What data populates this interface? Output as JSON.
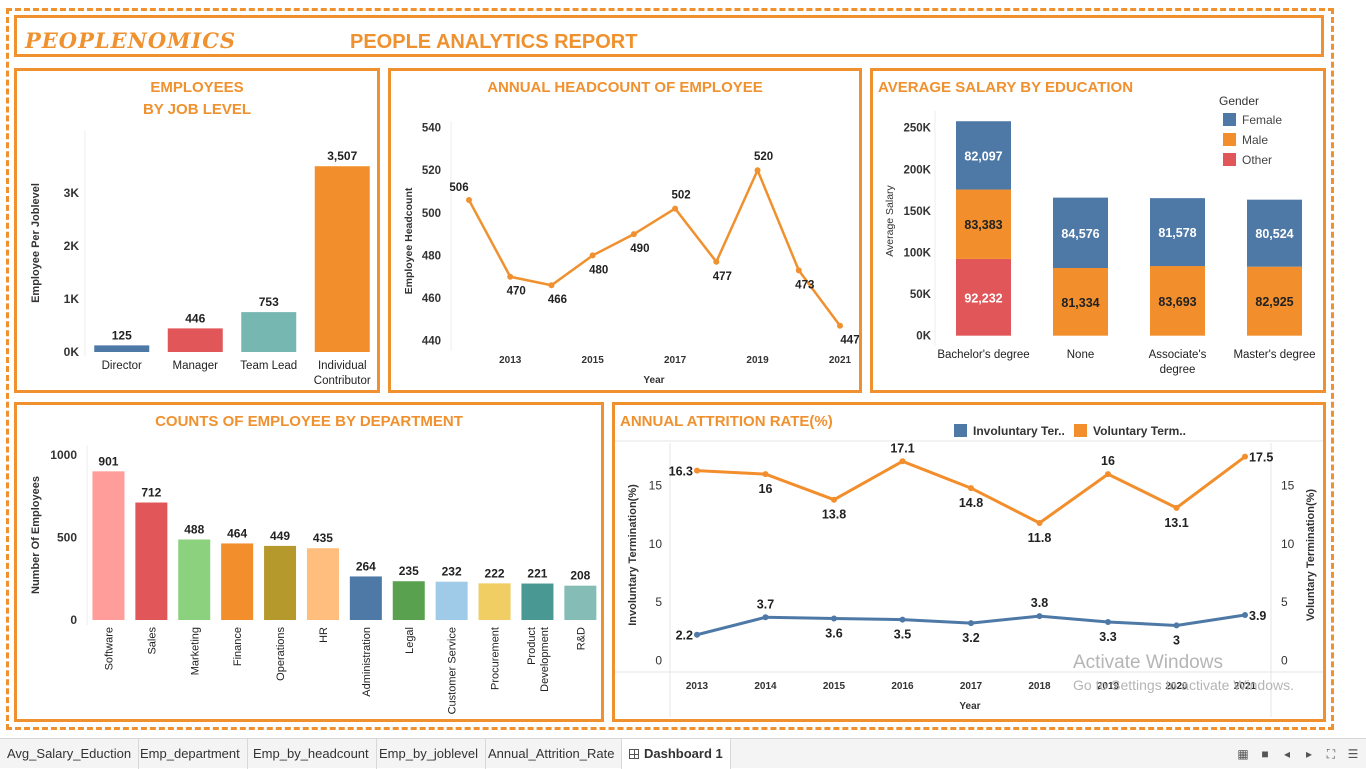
{
  "header": {
    "brand": "PEOPLENOMICS",
    "title": "PEOPLE ANALYTICS REPORT"
  },
  "panels": {
    "job_level": {
      "title_line1": "EMPLOYEES",
      "title_line2": "BY JOB LEVEL"
    },
    "headcount": {
      "title": "ANNUAL HEADCOUNT OF EMPLOYEE"
    },
    "salary": {
      "title": "AVERAGE SALARY BY EDUCATION"
    },
    "department": {
      "title": "COUNTS OF EMPLOYEE BY DEPARTMENT"
    },
    "attrition": {
      "title": "ANNUAL ATTRITION RATE(%)"
    }
  },
  "chart_data": [
    {
      "id": "job_level",
      "type": "bar",
      "categories": [
        "Director",
        "Manager",
        "Team Lead",
        "Individual Contributor"
      ],
      "values": [
        125,
        446,
        753,
        3507
      ],
      "value_labels": [
        "125",
        "446",
        "753",
        "3,507"
      ],
      "colors": [
        "#4e79a7",
        "#e15759",
        "#76b7b2",
        "#f28e2b"
      ],
      "ylabel": "Employee Per Joblevel",
      "yticks": [
        0,
        1000,
        2000,
        3000
      ],
      "ytick_labels": [
        "0K",
        "1K",
        "2K",
        "3K"
      ],
      "ylim": [
        0,
        3700
      ]
    },
    {
      "id": "headcount",
      "type": "line",
      "x": [
        2012,
        2013,
        2014,
        2015,
        2016,
        2017,
        2018,
        2019,
        2020,
        2021
      ],
      "values": [
        506,
        470,
        466,
        480,
        490,
        502,
        477,
        520,
        473,
        447
      ],
      "xticks": [
        2013,
        2015,
        2017,
        2019,
        2021
      ],
      "yticks": [
        440,
        460,
        480,
        500,
        520,
        540
      ],
      "ylim": [
        437,
        545
      ],
      "xlabel": "Year",
      "ylabel": "Employee Headcount",
      "color": "#f0912f"
    },
    {
      "id": "salary",
      "type": "bar",
      "stacked": true,
      "categories": [
        "Bachelor's degree",
        "None",
        "Associate's degree",
        "Master's degree"
      ],
      "series": [
        {
          "name": "Other",
          "color": "#e15759",
          "values": [
            92232,
            0,
            0,
            0
          ]
        },
        {
          "name": "Male",
          "color": "#f28e2b",
          "values": [
            83383,
            81334,
            83693,
            82925
          ]
        },
        {
          "name": "Female",
          "color": "#4e79a7",
          "values": [
            82097,
            84576,
            81578,
            80524
          ]
        }
      ],
      "value_labels": [
        [
          "92,232",
          "",
          "",
          ""
        ],
        [
          "83,383",
          "81,334",
          "83,693",
          "82,925"
        ],
        [
          "82,097",
          "84,576",
          "81,578",
          "80,524"
        ]
      ],
      "ylabel": "Average Salary",
      "yticks": [
        0,
        50000,
        100000,
        150000,
        200000,
        250000
      ],
      "ytick_labels": [
        "0K",
        "50K",
        "100K",
        "150K",
        "200K",
        "250K"
      ],
      "ylim": [
        -10000,
        270000
      ],
      "legend_title": "Gender",
      "legend": [
        "Female",
        "Male",
        "Other"
      ],
      "legend_colors": [
        "#4e79a7",
        "#f28e2b",
        "#e15759"
      ],
      "legend_position": "top-right"
    },
    {
      "id": "department",
      "type": "bar",
      "categories": [
        "Software",
        "Sales",
        "Marketing",
        "Finance",
        "Operations",
        "HR",
        "Administration",
        "Legal",
        "Customer Service",
        "Procurement",
        "Product Development",
        "R&D"
      ],
      "category_lines": [
        [
          "Software"
        ],
        [
          "Sales"
        ],
        [
          "Marketing"
        ],
        [
          "Finance"
        ],
        [
          "Operations"
        ],
        [
          "HR"
        ],
        [
          "Administration"
        ],
        [
          "Legal"
        ],
        [
          "Customer Service"
        ],
        [
          "Procurement"
        ],
        [
          "Product",
          "Development"
        ],
        [
          "R&D"
        ]
      ],
      "values": [
        901,
        712,
        488,
        464,
        449,
        435,
        264,
        235,
        232,
        222,
        221,
        208
      ],
      "colors": [
        "#ff9d9a",
        "#e15759",
        "#8cd17d",
        "#f28e2b",
        "#b6992d",
        "#ffbe7d",
        "#4e79a7",
        "#59a14f",
        "#a0cbe8",
        "#f1ce63",
        "#499894",
        "#86bcb6"
      ],
      "ylabel": "Number Of Employees",
      "yticks": [
        0,
        500,
        1000
      ],
      "ylim": [
        0,
        1000
      ]
    },
    {
      "id": "attrition",
      "type": "line",
      "x": [
        2013,
        2014,
        2015,
        2016,
        2017,
        2018,
        2019,
        2020,
        2021
      ],
      "series": [
        {
          "name": "Involuntary Ter..",
          "color": "#4e79a7",
          "axis": "left",
          "values": [
            2.2,
            3.7,
            3.6,
            3.5,
            3.2,
            3.8,
            3.3,
            3.0,
            3.9
          ],
          "labels": [
            "2.2",
            "3.7",
            "3.6",
            "3.5",
            "3.2",
            "3.8",
            "3.3",
            "3",
            "3.9"
          ]
        },
        {
          "name": "Voluntary Term..",
          "color": "#f28e2b",
          "axis": "right",
          "values": [
            16.3,
            16.0,
            13.8,
            17.1,
            14.8,
            11.8,
            16.0,
            13.1,
            17.5
          ],
          "labels": [
            "16.3",
            "16",
            "13.8",
            "17.1",
            "14.8",
            "11.8",
            "16",
            "13.1",
            "17.5"
          ]
        }
      ],
      "xlabel": "Year",
      "ylabel_left": "Involuntary Termination(%)",
      "ylabel_right": "Voluntary Termination(%)",
      "yticks": [
        0,
        5,
        10,
        15
      ],
      "ylim": [
        -1,
        18.5
      ],
      "legend_position": "top"
    }
  ],
  "watermark": {
    "line1": "Activate Windows",
    "line2": "Go to Settings to activate Windows."
  },
  "tabs": [
    "Avg_Salary_Eduction",
    "Emp_department",
    "Emp_by_headcount",
    "Emp_by_joblevel",
    "Annual_Attrition_Rate",
    "Dashboard 1"
  ],
  "active_tab": "Dashboard 1"
}
